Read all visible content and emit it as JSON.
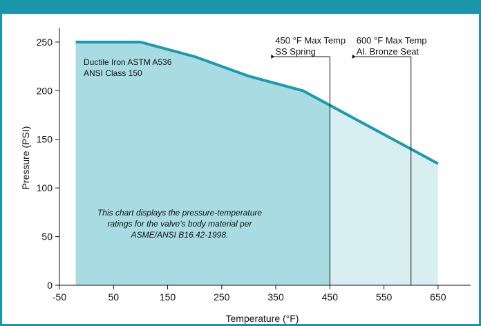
{
  "chart_data": {
    "type": "area",
    "title": "",
    "xlabel": "Temperature (°F)",
    "ylabel": "Pressure (PSI)",
    "xlim": [
      -50,
      700
    ],
    "ylim": [
      0,
      262
    ],
    "xticks": [
      -50,
      50,
      150,
      250,
      350,
      450,
      550,
      650
    ],
    "yticks": [
      0,
      50,
      100,
      150,
      200,
      250
    ],
    "grid": false,
    "series": [
      {
        "name": "",
        "x": [
          -20,
          100,
          200,
          300,
          400,
          500,
          600,
          650
        ],
        "y": [
          250,
          250,
          235,
          215,
          200,
          170,
          140,
          125
        ]
      }
    ],
    "material_label": [
      "Ductile Iron ASTM A536",
      "ANSI Class 150"
    ],
    "limits": [
      {
        "x": 450,
        "label": [
          "450 °F Max Temp",
          "SS Spring"
        ]
      },
      {
        "x": 600,
        "label": [
          "600 °F Max Temp",
          "Al. Bronze Seat"
        ]
      }
    ],
    "note": [
      "This chart displays the pressure-temperature",
      "ratings  for the valve's body material per",
      "ASME/ANSI B16.42-1998."
    ],
    "colors": {
      "frame": "#1a96aa",
      "line": "#1a9bb0",
      "fill_dark": "#a9dce2",
      "fill_light": "#d8eff2"
    }
  }
}
